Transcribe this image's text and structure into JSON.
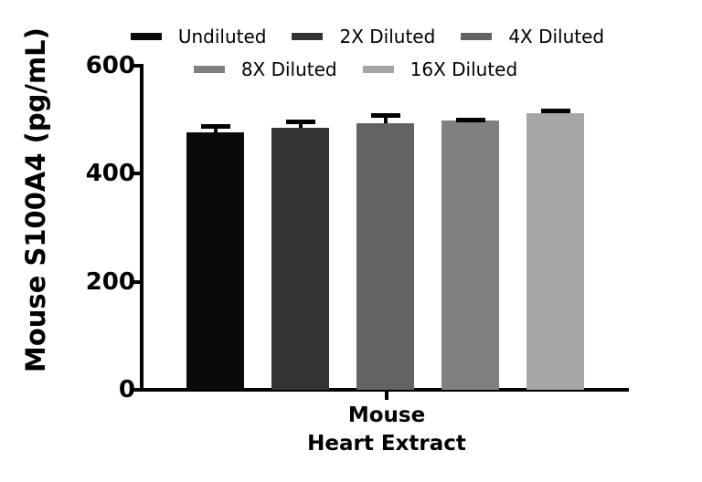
{
  "chart_data": {
    "type": "bar",
    "title": "",
    "ylabel": "Mouse S100A4 (pg/mL)",
    "xlabel_lines": [
      "Mouse",
      "Heart Extract"
    ],
    "categories": [
      "Mouse Heart Extract"
    ],
    "ylim": [
      0,
      600
    ],
    "yticks": [
      0,
      200,
      400,
      600
    ],
    "grid": false,
    "legend_position": "top",
    "error_bar_color": "#000000",
    "series": [
      {
        "name": "Undiluted",
        "value": 477,
        "error": 13,
        "color": "#0a0a0a"
      },
      {
        "name": "2X Diluted",
        "value": 485,
        "error": 14,
        "color": "#333333"
      },
      {
        "name": "4X Diluted",
        "value": 493,
        "error": 17,
        "color": "#636363"
      },
      {
        "name": "8X Diluted",
        "value": 498,
        "error": 4,
        "color": "#808080"
      },
      {
        "name": "16X Diluted",
        "value": 513,
        "error": 6,
        "color": "#a6a6a6"
      }
    ]
  },
  "colors": {
    "background": "#ffffff",
    "axis": "#000000",
    "text": "#000000"
  }
}
